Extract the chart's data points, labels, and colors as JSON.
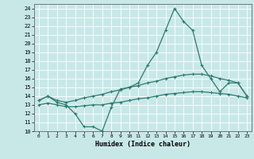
{
  "title": "",
  "xlabel": "Humidex (Indice chaleur)",
  "ylabel": "",
  "xlim": [
    -0.5,
    23.5
  ],
  "ylim": [
    10,
    24.5
  ],
  "yticks": [
    10,
    11,
    12,
    13,
    14,
    15,
    16,
    17,
    18,
    19,
    20,
    21,
    22,
    23,
    24
  ],
  "xticks": [
    0,
    1,
    2,
    3,
    4,
    5,
    6,
    7,
    8,
    9,
    10,
    11,
    12,
    13,
    14,
    15,
    16,
    17,
    18,
    19,
    20,
    21,
    22,
    23
  ],
  "background_color": "#c8e8e8",
  "grid_color": "#ffffff",
  "line_color": "#2e7b6e",
  "line1_x": [
    0,
    1,
    2,
    3,
    4,
    5,
    6,
    7,
    8,
    9,
    10,
    11,
    12,
    13,
    14,
    15,
    16,
    17,
    18,
    19,
    20,
    21,
    22,
    23
  ],
  "line1_y": [
    13.5,
    14.0,
    13.3,
    13.0,
    12.0,
    10.5,
    10.5,
    10.0,
    12.7,
    14.8,
    15.0,
    15.5,
    17.5,
    19.0,
    21.5,
    24.0,
    22.5,
    21.5,
    17.5,
    16.0,
    14.5,
    15.5,
    15.5,
    14.0
  ],
  "line2_x": [
    0,
    1,
    2,
    3,
    4,
    5,
    6,
    7,
    8,
    9,
    10,
    11,
    12,
    13,
    14,
    15,
    16,
    17,
    18,
    19,
    20,
    21,
    22,
    23
  ],
  "line2_y": [
    13.5,
    14.0,
    13.5,
    13.3,
    13.5,
    13.8,
    14.0,
    14.2,
    14.5,
    14.7,
    15.0,
    15.2,
    15.5,
    15.7,
    16.0,
    16.2,
    16.4,
    16.5,
    16.5,
    16.3,
    16.0,
    15.8,
    15.5,
    14.0
  ],
  "line3_x": [
    0,
    1,
    2,
    3,
    4,
    5,
    6,
    7,
    8,
    9,
    10,
    11,
    12,
    13,
    14,
    15,
    16,
    17,
    18,
    19,
    20,
    21,
    22,
    23
  ],
  "line3_y": [
    13.0,
    13.2,
    13.0,
    12.8,
    12.8,
    12.9,
    13.0,
    13.0,
    13.2,
    13.3,
    13.5,
    13.7,
    13.8,
    14.0,
    14.2,
    14.3,
    14.4,
    14.5,
    14.5,
    14.4,
    14.3,
    14.2,
    14.0,
    13.8
  ]
}
